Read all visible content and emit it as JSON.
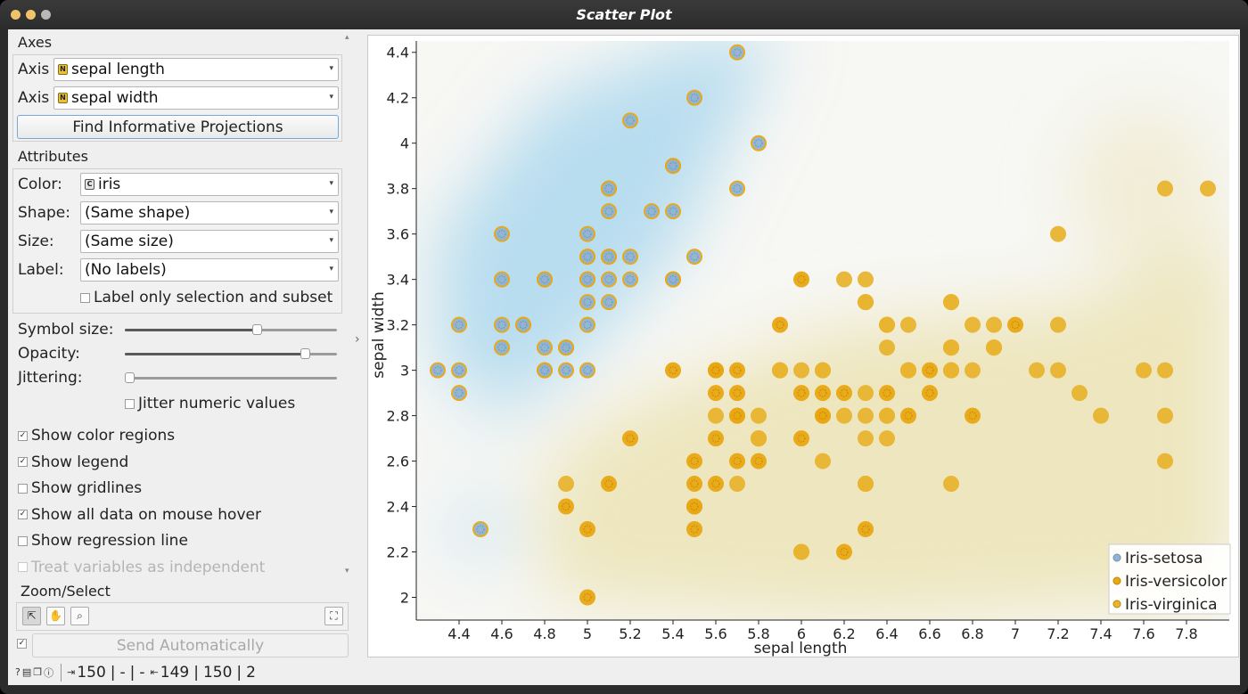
{
  "window": {
    "title": "Scatter Plot"
  },
  "axes": {
    "section_title": "Axes",
    "x_label": "Axis",
    "x_value": "sepal length",
    "y_label": "Axis",
    "y_value": "sepal width",
    "find_button": "Find Informative Projections"
  },
  "attributes": {
    "section_title": "Attributes",
    "color_label": "Color:",
    "color_value": "iris",
    "shape_label": "Shape:",
    "shape_value": "(Same shape)",
    "size_label": "Size:",
    "size_value": "(Same size)",
    "label_label": "Label:",
    "label_value": "(No labels)",
    "label_only_selection": "Label only selection and subset"
  },
  "sliders": {
    "symbol_size_label": "Symbol size:",
    "symbol_size_level": 0.63,
    "opacity_label": "Opacity:",
    "opacity_level": 0.87,
    "jittering_label": "Jittering:",
    "jittering_level": 0.0,
    "jitter_numeric": "Jitter numeric values"
  },
  "options": [
    {
      "label": "Show color regions",
      "checked": true,
      "disabled": false
    },
    {
      "label": "Show legend",
      "checked": true,
      "disabled": false
    },
    {
      "label": "Show gridlines",
      "checked": false,
      "disabled": false
    },
    {
      "label": "Show all data on mouse hover",
      "checked": true,
      "disabled": false
    },
    {
      "label": "Show regression line",
      "checked": false,
      "disabled": false
    },
    {
      "label": "Treat variables as independent",
      "checked": false,
      "disabled": true
    }
  ],
  "zoom": {
    "section_title": "Zoom/Select"
  },
  "send": {
    "label": "Send Automatically",
    "checked": true
  },
  "status": {
    "input_count": "150",
    "dash1": "-",
    "dash2": "-",
    "output_count": "149",
    "output_total": "150",
    "output_extra": "2"
  },
  "colors": {
    "setosa": "#8fb4d3",
    "versicolor": "#e9a713",
    "virginica": "#e9b531",
    "region_setosa": "#b4dbef",
    "region_yellow": "#ece4b8"
  },
  "chart_data": {
    "type": "scatter",
    "xlabel": "sepal length",
    "ylabel": "sepal width",
    "xlim": [
      4.2,
      8.0
    ],
    "ylim": [
      1.9,
      4.45
    ],
    "xticks": [
      "4.4",
      "4.6",
      "4.8",
      "5",
      "5.2",
      "5.4",
      "5.6",
      "5.8",
      "6",
      "6.2",
      "6.4",
      "6.6",
      "6.8",
      "7",
      "7.2",
      "7.4",
      "7.6",
      "7.8"
    ],
    "yticks": [
      "2",
      "2.2",
      "2.4",
      "2.6",
      "2.8",
      "3",
      "3.2",
      "3.4",
      "3.6",
      "3.8",
      "4",
      "4.2",
      "4.4"
    ],
    "legend": {
      "placement": "bottom-right",
      "entries": [
        "Iris-setosa",
        "Iris-versicolor",
        "Iris-virginica"
      ]
    },
    "series": [
      {
        "name": "Iris-setosa",
        "points": [
          [
            5.1,
            3.5
          ],
          [
            4.9,
            3.0
          ],
          [
            4.7,
            3.2
          ],
          [
            4.6,
            3.1
          ],
          [
            5.0,
            3.6
          ],
          [
            5.4,
            3.9
          ],
          [
            4.6,
            3.4
          ],
          [
            5.0,
            3.4
          ],
          [
            4.4,
            2.9
          ],
          [
            4.9,
            3.1
          ],
          [
            5.4,
            3.7
          ],
          [
            4.8,
            3.4
          ],
          [
            4.8,
            3.0
          ],
          [
            4.3,
            3.0
          ],
          [
            5.8,
            4.0
          ],
          [
            5.7,
            4.4
          ],
          [
            5.4,
            3.9
          ],
          [
            5.1,
            3.5
          ],
          [
            5.7,
            3.8
          ],
          [
            5.1,
            3.8
          ],
          [
            5.4,
            3.4
          ],
          [
            5.1,
            3.7
          ],
          [
            4.6,
            3.6
          ],
          [
            5.1,
            3.3
          ],
          [
            4.8,
            3.4
          ],
          [
            5.0,
            3.0
          ],
          [
            5.0,
            3.4
          ],
          [
            5.2,
            3.5
          ],
          [
            5.2,
            3.4
          ],
          [
            4.7,
            3.2
          ],
          [
            4.8,
            3.1
          ],
          [
            5.4,
            3.4
          ],
          [
            5.2,
            4.1
          ],
          [
            5.5,
            4.2
          ],
          [
            4.9,
            3.1
          ],
          [
            5.0,
            3.2
          ],
          [
            5.5,
            3.5
          ],
          [
            4.9,
            3.1
          ],
          [
            4.4,
            3.0
          ],
          [
            5.1,
            3.4
          ],
          [
            5.0,
            3.5
          ],
          [
            4.5,
            2.3
          ],
          [
            4.4,
            3.2
          ],
          [
            5.0,
            3.5
          ],
          [
            5.1,
            3.8
          ],
          [
            4.8,
            3.0
          ],
          [
            5.1,
            3.8
          ],
          [
            4.6,
            3.2
          ],
          [
            5.3,
            3.7
          ],
          [
            5.0,
            3.3
          ]
        ]
      },
      {
        "name": "Iris-versicolor",
        "points": [
          [
            7.0,
            3.2
          ],
          [
            6.4,
            3.2
          ],
          [
            6.9,
            3.1
          ],
          [
            5.5,
            2.3
          ],
          [
            6.5,
            2.8
          ],
          [
            5.7,
            2.8
          ],
          [
            6.3,
            3.3
          ],
          [
            4.9,
            2.4
          ],
          [
            6.6,
            2.9
          ],
          [
            5.2,
            2.7
          ],
          [
            5.0,
            2.0
          ],
          [
            5.9,
            3.0
          ],
          [
            6.0,
            2.2
          ],
          [
            6.1,
            2.9
          ],
          [
            5.6,
            2.9
          ],
          [
            6.7,
            3.1
          ],
          [
            5.6,
            3.0
          ],
          [
            5.8,
            2.7
          ],
          [
            6.2,
            2.2
          ],
          [
            5.6,
            2.5
          ],
          [
            5.9,
            3.2
          ],
          [
            6.1,
            2.8
          ],
          [
            6.3,
            2.5
          ],
          [
            6.1,
            2.8
          ],
          [
            6.4,
            2.9
          ],
          [
            6.6,
            3.0
          ],
          [
            6.8,
            2.8
          ],
          [
            6.7,
            3.0
          ],
          [
            6.0,
            2.9
          ],
          [
            5.7,
            2.6
          ],
          [
            5.5,
            2.4
          ],
          [
            5.5,
            2.4
          ],
          [
            5.8,
            2.7
          ],
          [
            6.0,
            2.7
          ],
          [
            5.4,
            3.0
          ],
          [
            6.0,
            3.4
          ],
          [
            6.7,
            3.1
          ],
          [
            6.3,
            2.3
          ],
          [
            5.6,
            3.0
          ],
          [
            5.5,
            2.5
          ],
          [
            5.5,
            2.6
          ],
          [
            6.1,
            3.0
          ],
          [
            5.8,
            2.6
          ],
          [
            5.0,
            2.3
          ],
          [
            5.6,
            2.7
          ],
          [
            5.7,
            3.0
          ],
          [
            5.7,
            2.9
          ],
          [
            6.2,
            2.9
          ],
          [
            5.1,
            2.5
          ],
          [
            5.7,
            2.8
          ]
        ]
      },
      {
        "name": "Iris-virginica",
        "points": [
          [
            6.3,
            3.3
          ],
          [
            5.8,
            2.7
          ],
          [
            7.1,
            3.0
          ],
          [
            6.3,
            2.9
          ],
          [
            6.5,
            3.0
          ],
          [
            7.6,
            3.0
          ],
          [
            4.9,
            2.5
          ],
          [
            7.3,
            2.9
          ],
          [
            6.7,
            2.5
          ],
          [
            7.2,
            3.6
          ],
          [
            6.5,
            3.2
          ],
          [
            6.4,
            2.7
          ],
          [
            6.8,
            3.0
          ],
          [
            5.7,
            2.5
          ],
          [
            5.8,
            2.8
          ],
          [
            6.4,
            3.2
          ],
          [
            6.5,
            3.0
          ],
          [
            7.7,
            3.8
          ],
          [
            7.7,
            2.6
          ],
          [
            6.0,
            2.2
          ],
          [
            6.9,
            3.2
          ],
          [
            5.6,
            2.8
          ],
          [
            7.7,
            2.8
          ],
          [
            6.3,
            2.7
          ],
          [
            6.7,
            3.3
          ],
          [
            7.2,
            3.2
          ],
          [
            6.2,
            2.8
          ],
          [
            6.1,
            3.0
          ],
          [
            6.4,
            2.8
          ],
          [
            7.2,
            3.0
          ],
          [
            7.4,
            2.8
          ],
          [
            7.9,
            3.8
          ],
          [
            6.4,
            2.8
          ],
          [
            6.3,
            2.8
          ],
          [
            6.1,
            2.6
          ],
          [
            7.7,
            3.0
          ],
          [
            6.3,
            3.4
          ],
          [
            6.4,
            3.1
          ],
          [
            6.0,
            3.0
          ],
          [
            6.9,
            3.1
          ],
          [
            6.7,
            3.1
          ],
          [
            6.9,
            3.1
          ],
          [
            5.8,
            2.7
          ],
          [
            6.8,
            3.2
          ],
          [
            6.7,
            3.3
          ],
          [
            6.7,
            3.0
          ],
          [
            6.3,
            2.5
          ],
          [
            6.5,
            3.0
          ],
          [
            6.2,
            3.4
          ],
          [
            5.9,
            3.0
          ]
        ]
      }
    ]
  }
}
